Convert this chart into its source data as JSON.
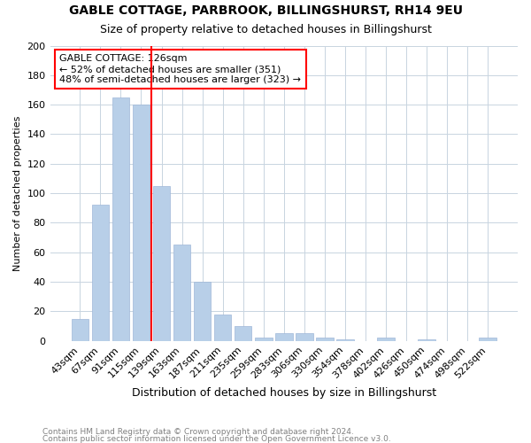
{
  "title1": "GABLE COTTAGE, PARBROOK, BILLINGSHURST, RH14 9EU",
  "title2": "Size of property relative to detached houses in Billingshurst",
  "xlabel": "Distribution of detached houses by size in Billingshurst",
  "ylabel": "Number of detached properties",
  "categories": [
    "43sqm",
    "67sqm",
    "91sqm",
    "115sqm",
    "139sqm",
    "163sqm",
    "187sqm",
    "211sqm",
    "235sqm",
    "259sqm",
    "283sqm",
    "306sqm",
    "330sqm",
    "354sqm",
    "378sqm",
    "402sqm",
    "426sqm",
    "450sqm",
    "474sqm",
    "498sqm",
    "522sqm"
  ],
  "values": [
    15,
    92,
    165,
    160,
    105,
    65,
    40,
    18,
    10,
    2,
    5,
    5,
    2,
    1,
    0,
    2,
    0,
    1,
    0,
    0,
    2
  ],
  "bar_color": "#b8cfe8",
  "bar_edgecolor": "#a0b8d8",
  "vline_x": 3.5,
  "annotation_line1": "GABLE COTTAGE: 126sqm",
  "annotation_line2": "← 52% of detached houses are smaller (351)",
  "annotation_line3": "48% of semi-detached houses are larger (323) →",
  "footer_line1": "Contains HM Land Registry data © Crown copyright and database right 2024.",
  "footer_line2": "Contains public sector information licensed under the Open Government Licence v3.0.",
  "ylim": [
    0,
    200
  ],
  "yticks": [
    0,
    20,
    40,
    60,
    80,
    100,
    120,
    140,
    160,
    180,
    200
  ],
  "title1_fontsize": 10,
  "title2_fontsize": 9,
  "ylabel_fontsize": 8,
  "xlabel_fontsize": 9,
  "tick_fontsize": 8,
  "annot_fontsize": 8,
  "footer_fontsize": 6.5
}
